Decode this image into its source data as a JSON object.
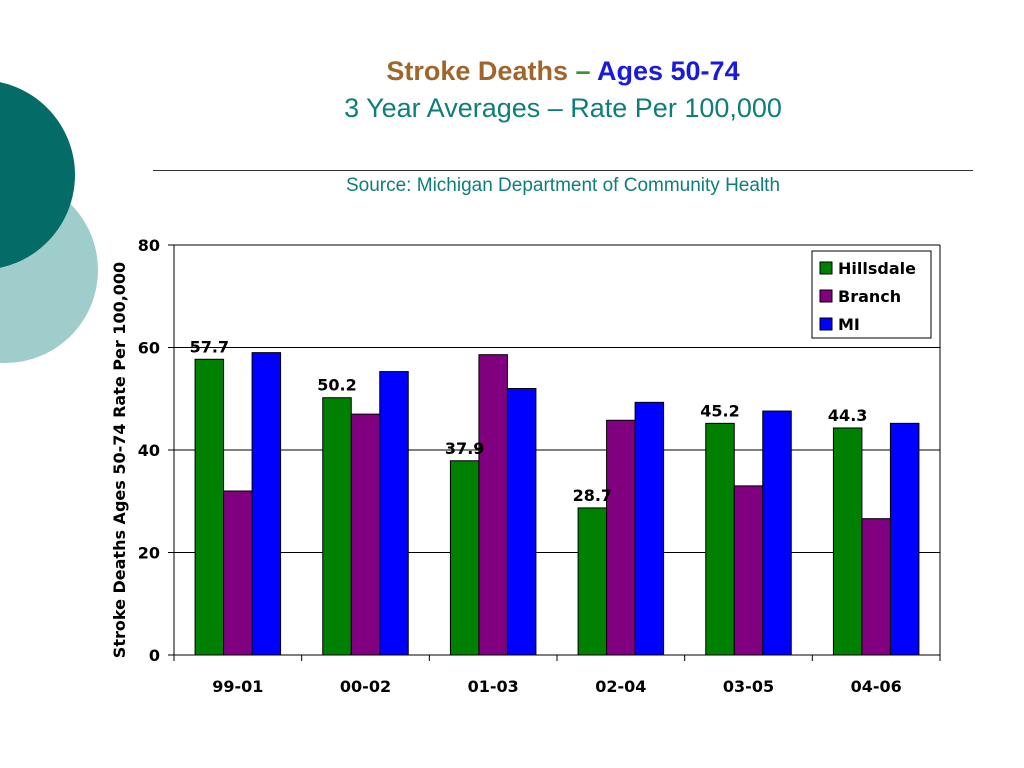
{
  "colors": {
    "title_brown": "#A0652B",
    "accent_green": "#2F9A2A",
    "title_blue": "#1A1ADB",
    "teal_text": "#0E7E7A",
    "deco_dark": "#056B66",
    "deco_light": "#9FCDCB"
  },
  "slide": {
    "title_part1": "Stroke Deaths",
    "title_dash": " – ",
    "title_part2": "Ages 50-74",
    "subtitle": "3 Year Averages – Rate Per 100,000",
    "source": "Source: Michigan Department of Community Health"
  },
  "chart_data": {
    "type": "bar",
    "categories": [
      "99-01",
      "00-02",
      "01-03",
      "02-04",
      "03-05",
      "04-06"
    ],
    "series": [
      {
        "name": "Hillsdale",
        "color": "#008000",
        "values": [
          57.7,
          50.2,
          37.9,
          28.7,
          45.2,
          44.3
        ]
      },
      {
        "name": "Branch",
        "color": "#800080",
        "values": [
          32.0,
          47.0,
          58.6,
          45.8,
          33.0,
          26.6
        ]
      },
      {
        "name": "MI",
        "color": "#0000FF",
        "values": [
          59.0,
          55.3,
          52.0,
          49.3,
          47.6,
          45.2
        ]
      }
    ],
    "data_labels": {
      "series": "Hillsdale",
      "values": [
        "57.7",
        "50.2",
        "37.9",
        "28.7",
        "45.2",
        "44.3"
      ]
    },
    "ylabel": "Stroke Deaths Ages 50-74 Rate Per 100,000",
    "xlabel": "",
    "ylim": [
      0,
      80
    ],
    "yticks": [
      "0",
      "20",
      "40",
      "60",
      "80"
    ],
    "grid": true,
    "legend_position": "top-right"
  }
}
